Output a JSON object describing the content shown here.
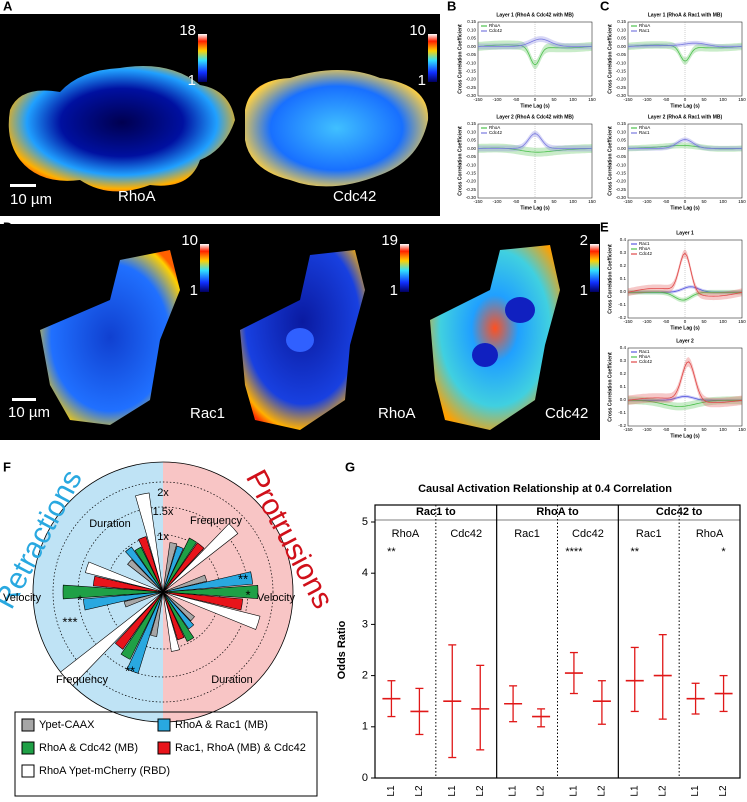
{
  "panel_labels": [
    "A",
    "B",
    "C",
    "D",
    "E",
    "F",
    "G"
  ],
  "A": {
    "colorbars": [
      {
        "max": "18",
        "min": "1"
      },
      {
        "max": "10",
        "min": "1"
      }
    ],
    "cells": [
      "RhoA",
      "Cdc42"
    ],
    "scale": "10 µm"
  },
  "D": {
    "colorbars": [
      {
        "max": "10",
        "min": "1"
      },
      {
        "max": "19",
        "min": "1"
      },
      {
        "max": "2",
        "min": "1"
      }
    ],
    "cells": [
      "Rac1",
      "RhoA",
      "Cdc42"
    ],
    "scale": "10 µm"
  },
  "ccf": {
    "ylabel": "Cross  Correlation  Coefficient",
    "xlabel": "Time Lag (s)",
    "xticks": [
      "-150",
      "-100",
      "-50",
      "0",
      "50",
      "100",
      "150"
    ]
  },
  "B": {
    "yticks": [
      "0.15",
      "0.10",
      "0.05",
      "0.00",
      "-0.05",
      "-0.10",
      "-0.15",
      "-0.20",
      "-0.25",
      "-0.30"
    ],
    "plots": [
      {
        "title": "Layer 1 (RhoA & Cdc42 with MB)",
        "legend": [
          "RhoA",
          "Cdc42"
        ]
      },
      {
        "title": "Layer 2 (RhoA & Cdc42 with MB)",
        "legend": [
          "RhoA",
          "Cdc42"
        ]
      }
    ]
  },
  "C": {
    "yticks": [
      "0.15",
      "0.10",
      "0.05",
      "0.00",
      "-0.05",
      "-0.10",
      "-0.15",
      "-0.20",
      "-0.25",
      "-0.30"
    ],
    "plots": [
      {
        "title": "Layer 1 (RhoA & Rac1 with MB)",
        "legend": [
          "RhoA",
          "Rac1"
        ]
      },
      {
        "title": "Layer 2 (RhoA & Rac1 with MB)",
        "legend": [
          "RhoA",
          "Rac1"
        ]
      }
    ]
  },
  "E": {
    "yticks": [
      "0.4",
      "0.3",
      "0.2",
      "0.1",
      "0.0",
      "-0.1",
      "-0.2"
    ],
    "plots": [
      {
        "title": "Layer 1",
        "legend": [
          "Rac1",
          "RhoA",
          "Cdc42"
        ]
      },
      {
        "title": "Layer 2",
        "legend": [
          "Rac1",
          "RhoA",
          "Cdc42"
        ]
      }
    ]
  },
  "F": {
    "sides": [
      "Retractions",
      "Protrusions"
    ],
    "rings": [
      "2x",
      "1.5x",
      "1x"
    ],
    "categories": [
      "Duration",
      "Frequency",
      "Velocity",
      "Velocity",
      "Frequency",
      "Duration"
    ],
    "stars": [
      "*",
      "***",
      "**",
      "*",
      "**"
    ],
    "legend": [
      {
        "name": "Ypet-CAAX",
        "color": "#a6a6a6"
      },
      {
        "name": "RhoA & Rac1 (MB)",
        "color": "#29a8e0"
      },
      {
        "name": "RhoA & Cdc42 (MB)",
        "color": "#1fa046"
      },
      {
        "name": "Rac1, RhoA (MB) & Cdc42",
        "color": "#e8141b"
      },
      {
        "name": "RhoA Ypet-mCherry (RBD)",
        "color": "#ffffff"
      }
    ]
  },
  "G": {
    "title": "Causal Activation Relationship at 0.4 Correlation",
    "ylabel": "Odds  Ratio",
    "ylim": [
      0,
      5
    ],
    "yticks": [
      0,
      1,
      2,
      3,
      4,
      5
    ],
    "conditions": [
      "L1",
      "L2"
    ],
    "groups": [
      {
        "name": "Rac1 to",
        "subs": [
          {
            "name": "RhoA",
            "stars": {
              "L1": "**"
            },
            "mean": [
              1.55,
              1.3
            ],
            "ci": [
              [
                1.2,
                1.9
              ],
              [
                0.85,
                1.75
              ]
            ]
          },
          {
            "name": "Cdc42",
            "mean": [
              1.5,
              1.35
            ],
            "ci": [
              [
                0.4,
                2.6
              ],
              [
                0.55,
                2.2
              ]
            ]
          }
        ]
      },
      {
        "name": "RhoA to",
        "subs": [
          {
            "name": "Rac1",
            "mean": [
              1.45,
              1.2
            ],
            "ci": [
              [
                1.1,
                1.8
              ],
              [
                1.0,
                1.35
              ]
            ]
          },
          {
            "name": "Cdc42",
            "stars": {
              "L1": "****"
            },
            "mean": [
              2.05,
              1.5
            ],
            "ci": [
              [
                1.65,
                2.45
              ],
              [
                1.05,
                1.9
              ]
            ]
          }
        ]
      },
      {
        "name": "Cdc42 to",
        "subs": [
          {
            "name": "Rac1",
            "stars": {
              "L1": "**"
            },
            "mean": [
              1.9,
              2.0
            ],
            "ci": [
              [
                1.3,
                2.55
              ],
              [
                1.15,
                2.8
              ]
            ]
          },
          {
            "name": "RhoA",
            "stars": {
              "L2": "*"
            },
            "mean": [
              1.55,
              1.65
            ],
            "ci": [
              [
                1.25,
                1.85
              ],
              [
                1.3,
                2.0
              ]
            ]
          }
        ]
      }
    ]
  }
}
